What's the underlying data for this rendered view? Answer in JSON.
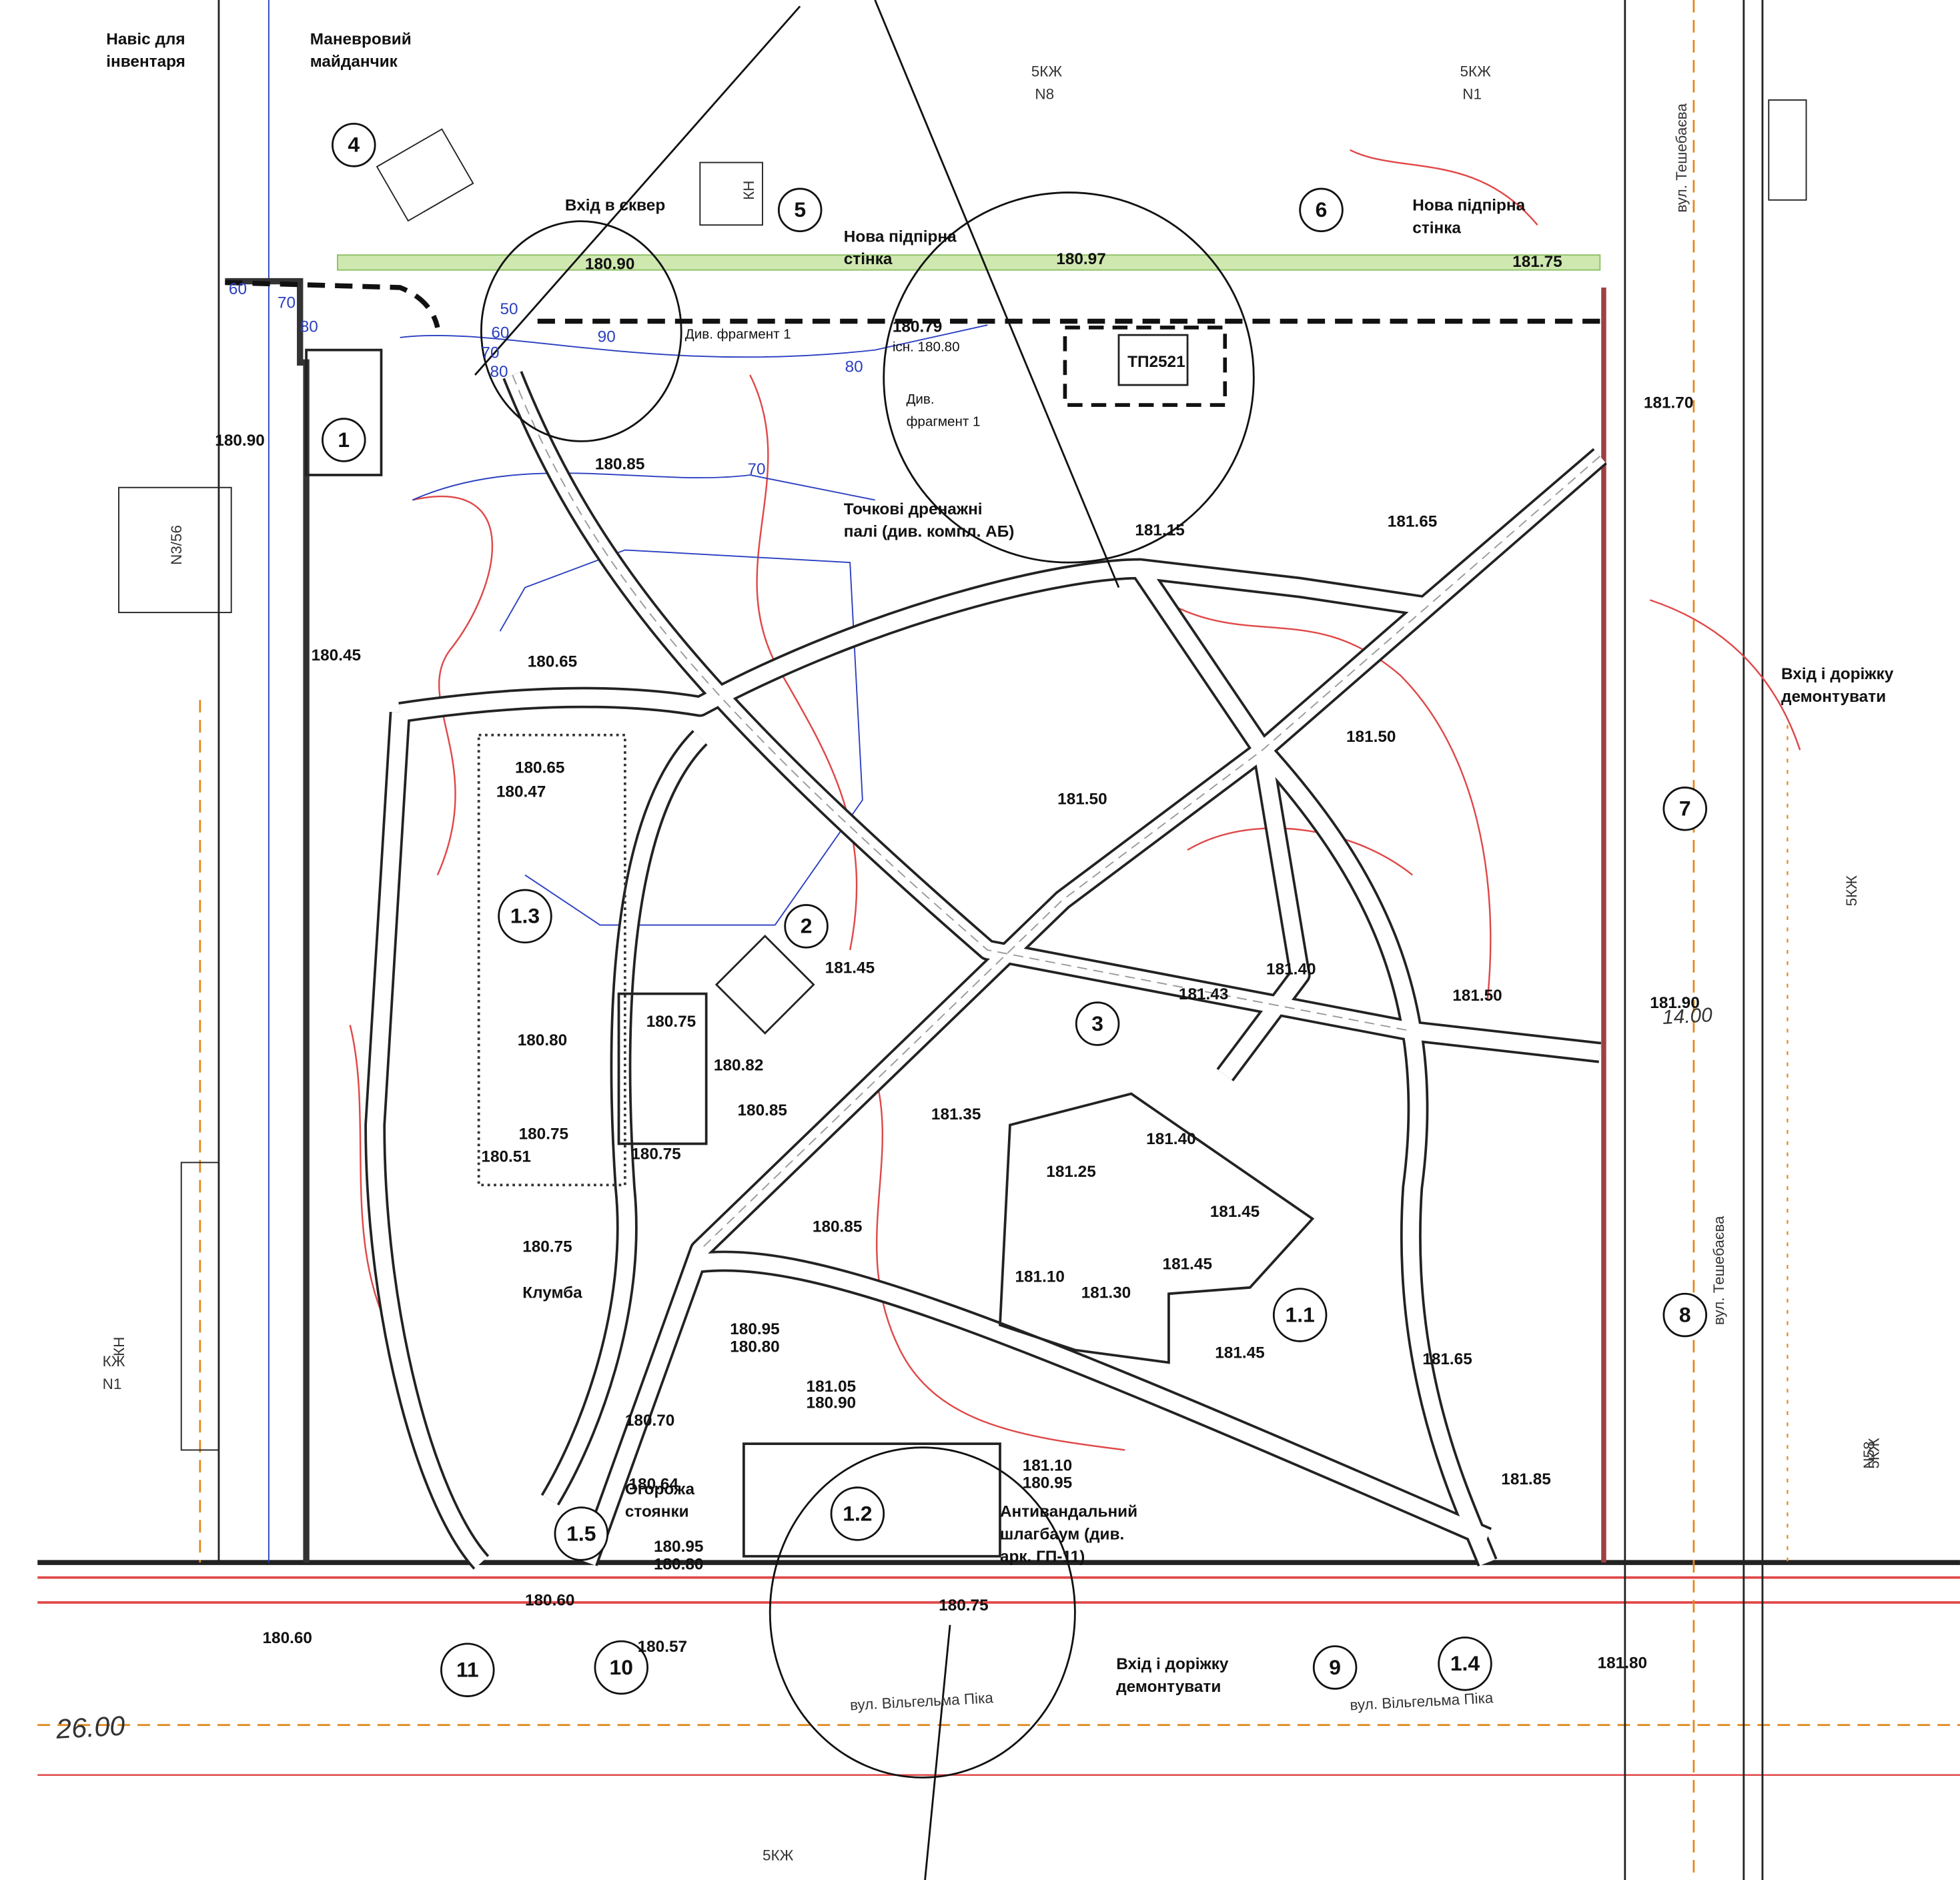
{
  "annotations": [
    {
      "lines": [
        "Навіс для",
        "інвентаря"
      ]
    },
    {
      "lines": [
        "Маневровий",
        "майданчик"
      ]
    },
    {
      "lines": [
        "Вхід в сквер"
      ]
    },
    {
      "lines": [
        "Нова підпірна",
        "стінка"
      ]
    },
    {
      "lines": [
        "Нова підпірна",
        "стінка"
      ]
    },
    {
      "lines": [
        "Див. фрагмент 1"
      ]
    },
    {
      "lines": [
        "Див.",
        "фрагмент 1"
      ]
    },
    {
      "lines": [
        "Точкові дренажні",
        "палі (див. компл. АБ)"
      ]
    },
    {
      "lines": [
        "Вхід і доріжку",
        "демонтувати"
      ]
    },
    {
      "lines": [
        "Клумба"
      ]
    },
    {
      "lines": [
        "Огорожа",
        "стоянки"
      ]
    },
    {
      "lines": [
        "Антивандальний",
        "шлагбаум (див.",
        "арк. ГП-11)"
      ]
    },
    {
      "lines": [
        "Вхід і доріжку",
        "демонтувати"
      ]
    },
    {
      "lines": [
        "ТП2521"
      ]
    },
    {
      "lines": [
        "існ. 180.80"
      ]
    }
  ],
  "markers": [
    "1",
    "4",
    "5",
    "6",
    "7",
    "8",
    "1.1",
    "1.2",
    "1.3",
    "1.4",
    "1.5",
    "2",
    "3",
    "9",
    "10",
    "11"
  ],
  "elevations": [
    "180.90",
    "180.97",
    "181.75",
    "180.79",
    "181.70",
    "180.85",
    "180.90",
    "181.15",
    "181.65",
    "180.45",
    "180.65",
    "181.50",
    "180.65",
    "180.47",
    "181.50",
    "181.45",
    "181.40",
    "181.43",
    "181.50",
    "181.90",
    "180.75",
    "180.80",
    "180.82",
    "180.85",
    "181.35",
    "180.75",
    "181.40",
    "180.51",
    "180.75",
    "181.25",
    "180.85",
    "180.75",
    "181.45",
    "181.45",
    "181.10",
    "181.30",
    "181.45",
    "181.65",
    "180.95",
    "180.80",
    "181.05",
    "180.90",
    "180.70",
    "181.10",
    "180.95",
    "180.64",
    "181.85",
    "180.95",
    "180.80",
    "180.60",
    "180.75",
    "180.57",
    "180.60",
    "181.80"
  ],
  "contour_labels": [
    "60",
    "70",
    "80",
    "50",
    "60",
    "70",
    "80",
    "90",
    "80",
    "70"
  ],
  "streets": [
    "вул. Тешебаєва",
    "вул. Тешебаєва",
    "вул. Вільгельма Піка",
    "вул. Вільгельма Піка",
    "5КЖ",
    "N8",
    "5КЖ",
    "N1",
    "5КЖ",
    "N58",
    "5КЖ",
    "N3/56",
    "КН",
    "КН",
    "КЖ",
    "N1",
    "5КЖ",
    "26.00",
    "14.00"
  ]
}
